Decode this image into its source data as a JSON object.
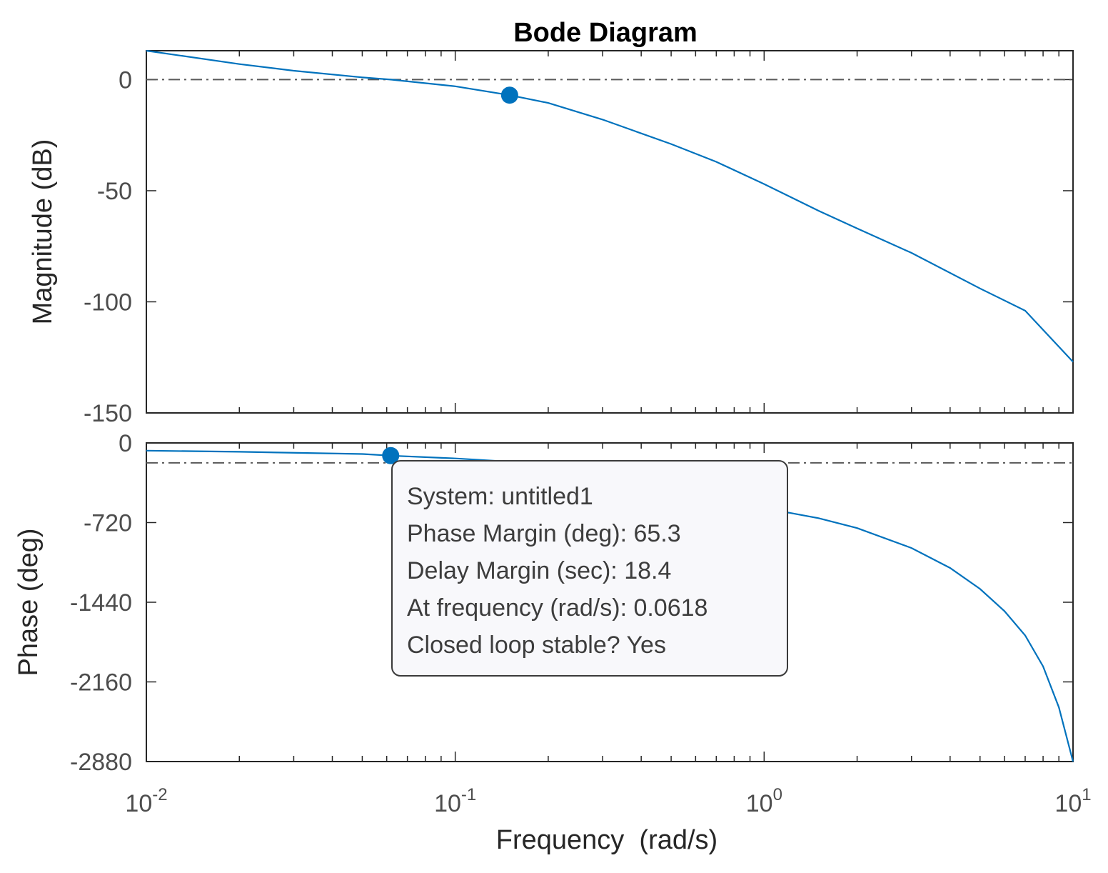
{
  "chart_data": {
    "type": "line",
    "title": "Bode Diagram",
    "xlabel": "Frequency  (rad/s)",
    "xscale": "log",
    "xlim": [
      0.01,
      10
    ],
    "x_ticks": [
      {
        "value": 0.01,
        "base": "10",
        "exp": "-2"
      },
      {
        "value": 0.1,
        "base": "10",
        "exp": "-1"
      },
      {
        "value": 1,
        "base": "10",
        "exp": "0"
      },
      {
        "value": 10,
        "base": "10",
        "exp": "1"
      }
    ],
    "grid": false,
    "line_color": "#0072bd",
    "marker_color": "#0072bd",
    "reference_line_color": "#595959",
    "panels": [
      {
        "name": "magnitude",
        "ylabel": "Magnitude (dB)",
        "ylim": [
          -150,
          13
        ],
        "yticks": [
          0,
          -50,
          -100,
          -150
        ],
        "reference_line": 0,
        "series": [
          {
            "x": [
              0.01,
              0.02,
              0.03,
              0.05,
              0.0618,
              0.1,
              0.15,
              0.2,
              0.3,
              0.5,
              0.7,
              1,
              1.5,
              2,
              3,
              5,
              7,
              10
            ],
            "y": [
              13,
              7,
              4,
              1,
              0,
              -3,
              -7,
              -10.5,
              -18,
              -29,
              -37,
              -47,
              -59,
              -67,
              -78,
              -94,
              -104,
              -127
            ]
          }
        ],
        "markers": [
          {
            "x": 0.15,
            "y": -7
          }
        ]
      },
      {
        "name": "phase",
        "ylabel": "Phase (deg)",
        "ylim": [
          -2880,
          0
        ],
        "yticks": [
          0,
          -720,
          -1440,
          -2160,
          -2880
        ],
        "reference_line": -180,
        "series": [
          {
            "x": [
              0.01,
              0.02,
              0.05,
              0.0618,
              0.1,
              0.2,
              0.3,
              0.5,
              0.7,
              1,
              1.2,
              1.5,
              2,
              3,
              4,
              5,
              6,
              7,
              8,
              9,
              10
            ],
            "y": [
              -70,
              -80,
              -100,
              -114.7,
              -140,
              -190,
              -250,
              -370,
              -480,
              -600,
              -630,
              -680,
              -770,
              -950,
              -1130,
              -1320,
              -1520,
              -1740,
              -2020,
              -2390,
              -2880
            ]
          }
        ],
        "markers": [
          {
            "x": 0.0618,
            "y": -114.7
          }
        ]
      }
    ],
    "datatip": {
      "lines": [
        "System: untitled1",
        "Phase Margin (deg): 65.3",
        "Delay Margin (sec): 18.4",
        "At frequency (rad/s): 0.0618",
        "Closed loop stable? Yes"
      ]
    }
  }
}
